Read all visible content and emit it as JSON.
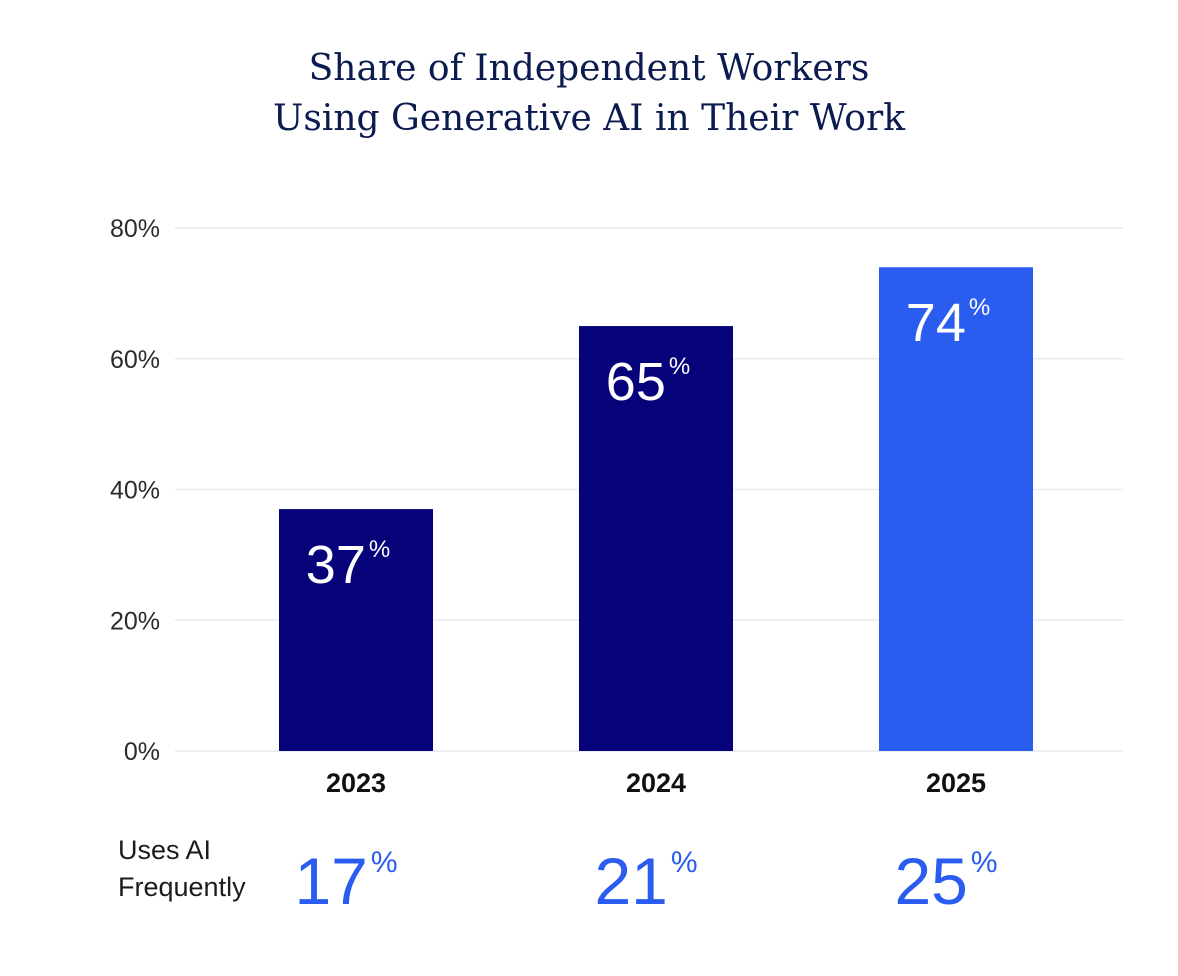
{
  "chart_data": {
    "type": "bar",
    "title_lines": [
      "Share of Independent Workers",
      "Using Generative AI in Their Work"
    ],
    "categories": [
      "2023",
      "2024",
      "2025"
    ],
    "values": [
      37,
      65,
      74
    ],
    "value_labels": [
      "37",
      "65",
      "74"
    ],
    "value_suffix": "%",
    "ylim": [
      0,
      80
    ],
    "yticks": [
      0,
      20,
      40,
      60,
      80
    ],
    "ytick_labels": [
      "0%",
      "20%",
      "40%",
      "60%",
      "80%"
    ],
    "grid": true,
    "colors": {
      "bar_dark": "#06037a",
      "bar_highlight": "#2a5cf0",
      "title": "#0b1a4f",
      "secondary_value": "#2a5cf0",
      "gridline": "#e9e9ee"
    },
    "bar_color_keys": [
      "bar_dark",
      "bar_dark",
      "bar_highlight"
    ],
    "secondary_row": {
      "label_lines": [
        "Uses AI",
        "Frequently"
      ],
      "values": [
        17,
        21,
        25
      ],
      "value_labels": [
        "17",
        "21",
        "25"
      ],
      "suffix": "%"
    }
  }
}
